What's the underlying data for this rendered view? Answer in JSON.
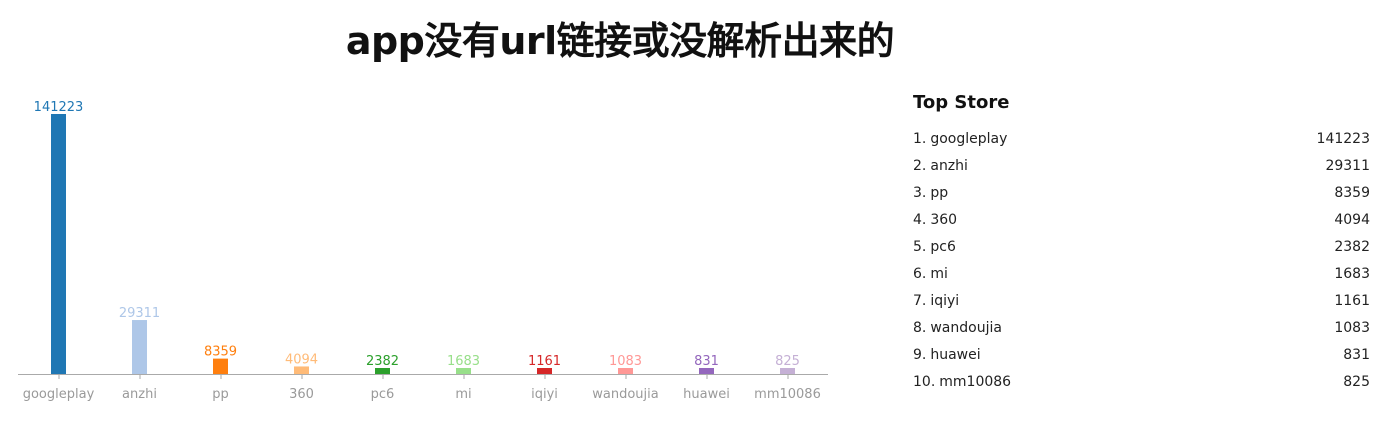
{
  "title": "app没有url链接或没解析出来的",
  "chart_data": {
    "type": "bar",
    "categories": [
      "googleplay",
      "anzhi",
      "pp",
      "360",
      "pc6",
      "mi",
      "iqiyi",
      "wandoujia",
      "huawei",
      "mm10086"
    ],
    "values": [
      141223,
      29311,
      8359,
      4094,
      2382,
      1683,
      1161,
      1083,
      831,
      825
    ],
    "colors": [
      "#1f77b4",
      "#aec7e8",
      "#ff7f0e",
      "#ffbb78",
      "#2ca02c",
      "#98df8a",
      "#d62728",
      "#ff9896",
      "#9467bd",
      "#c5b0d5"
    ],
    "ylim": [
      0,
      141223
    ],
    "grid": false,
    "xlabel": "",
    "ylabel": ""
  },
  "top_store": {
    "heading": "Top Store",
    "items": [
      {
        "rank": "1.",
        "name": "googleplay",
        "count": "141223"
      },
      {
        "rank": "2.",
        "name": "anzhi",
        "count": "29311"
      },
      {
        "rank": "3.",
        "name": "pp",
        "count": "8359"
      },
      {
        "rank": "4.",
        "name": "360",
        "count": "4094"
      },
      {
        "rank": "5.",
        "name": "pc6",
        "count": "2382"
      },
      {
        "rank": "6.",
        "name": "mi",
        "count": "1683"
      },
      {
        "rank": "7.",
        "name": "iqiyi",
        "count": "1161"
      },
      {
        "rank": "8.",
        "name": "wandoujia",
        "count": "1083"
      },
      {
        "rank": "9.",
        "name": "huawei",
        "count": "831"
      },
      {
        "rank": "10.",
        "name": "mm10086",
        "count": "825"
      }
    ]
  }
}
